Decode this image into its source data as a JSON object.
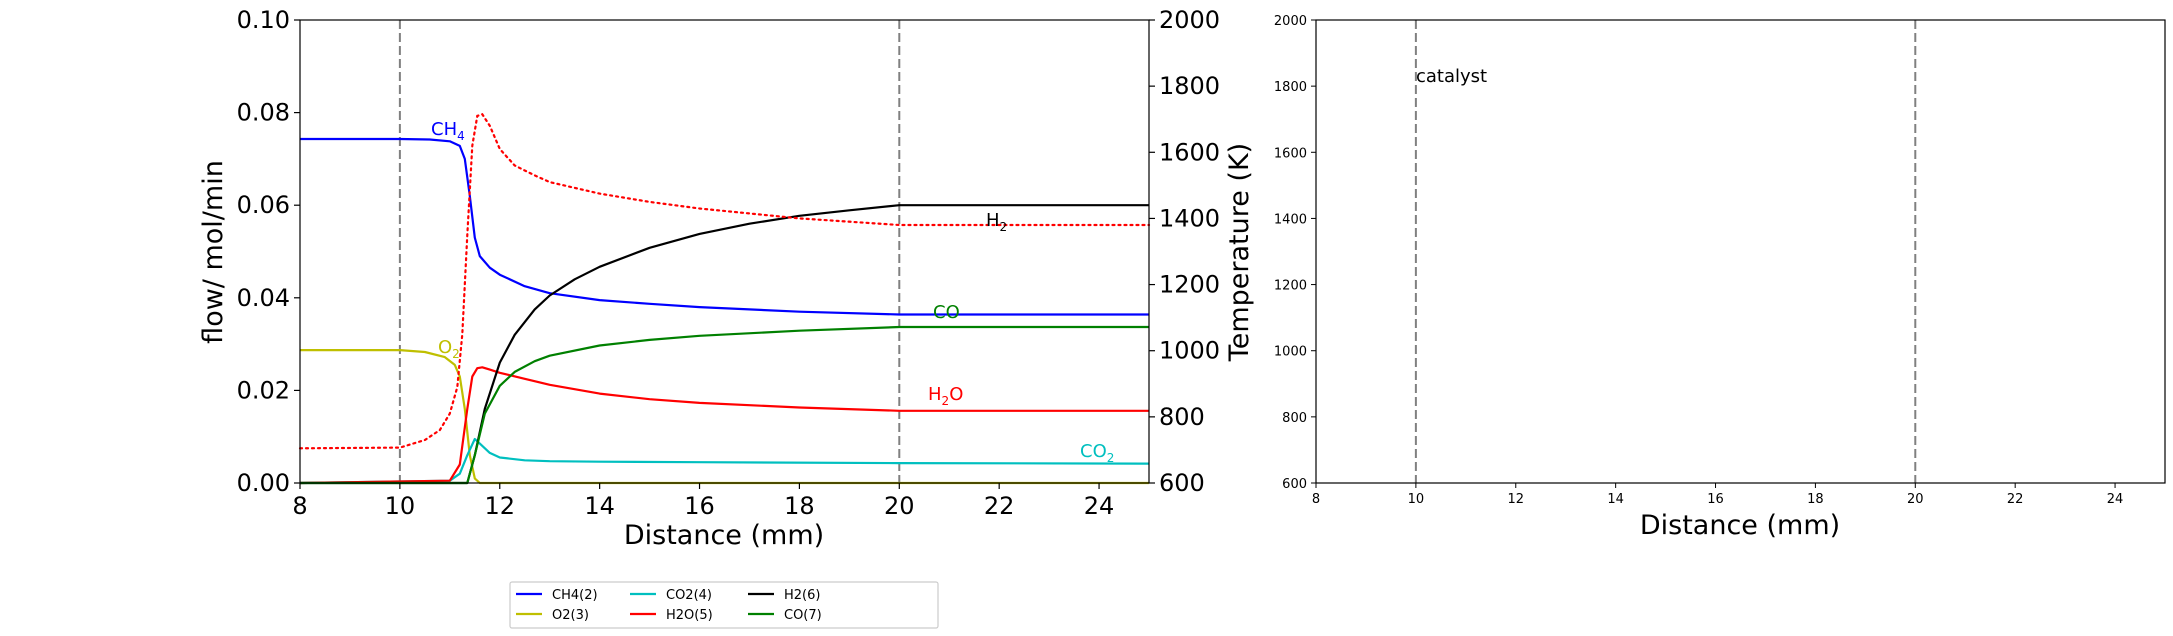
{
  "chart_data": [
    {
      "type": "line",
      "xlabel": "Distance (mm)",
      "ylabel": "flow/ mol/min",
      "y2label": "Temperature (K)",
      "xlim": [
        8,
        25
      ],
      "ylim": [
        0,
        0.1
      ],
      "y2lim": [
        600,
        2000
      ],
      "xticks": [
        "8",
        "10",
        "12",
        "14",
        "16",
        "18",
        "20",
        "22",
        "24"
      ],
      "yticks": [
        "0.00",
        "0.02",
        "0.04",
        "0.06",
        "0.08",
        "0.10"
      ],
      "y2ticks": [
        "600",
        "800",
        "1000",
        "1200",
        "1400",
        "1600",
        "1800",
        "2000"
      ],
      "vlines": [
        10,
        20
      ],
      "series": [
        {
          "name": "CH4(2)",
          "label": "CH",
          "sub": "4",
          "label_suffix": "",
          "color": "#0000ff",
          "x": [
            8,
            10,
            10.6,
            11.0,
            11.2,
            11.3,
            11.4,
            11.5,
            11.6,
            11.8,
            12,
            12.5,
            13,
            14,
            15,
            16,
            18,
            20,
            25
          ],
          "y": [
            0.0743,
            0.0743,
            0.0742,
            0.0738,
            0.0728,
            0.07,
            0.062,
            0.053,
            0.049,
            0.0465,
            0.045,
            0.0425,
            0.041,
            0.0395,
            0.0387,
            0.038,
            0.037,
            0.0364,
            0.0364
          ]
        },
        {
          "name": "O2(3)",
          "label": "O",
          "sub": "2",
          "label_suffix": "",
          "color": "#bfbf00",
          "x": [
            8,
            10,
            10.5,
            10.9,
            11.1,
            11.2,
            11.3,
            11.4,
            11.5,
            11.6,
            25
          ],
          "y": [
            0.0287,
            0.0287,
            0.0283,
            0.0272,
            0.0255,
            0.023,
            0.016,
            0.006,
            0.001,
            0.0,
            0.0
          ]
        },
        {
          "name": "CO2(4)",
          "label": "CO",
          "sub": "2",
          "label_suffix": "",
          "color": "#00bfbf",
          "x": [
            8,
            11.0,
            11.2,
            11.35,
            11.5,
            11.6,
            11.8,
            12,
            12.5,
            13,
            14,
            16,
            20,
            25
          ],
          "y": [
            0.0,
            0.0005,
            0.002,
            0.006,
            0.0095,
            0.0085,
            0.0065,
            0.0055,
            0.0049,
            0.0047,
            0.0046,
            0.0045,
            0.0043,
            0.0042
          ]
        },
        {
          "name": "H2O(5)",
          "label": "H",
          "sub": "2",
          "label_suffix": "O",
          "color": "#ff0000",
          "x": [
            8,
            11.0,
            11.2,
            11.35,
            11.45,
            11.55,
            11.65,
            11.8,
            12,
            12.5,
            13,
            14,
            15,
            16,
            18,
            20,
            25
          ],
          "y": [
            0.0,
            0.0005,
            0.004,
            0.016,
            0.023,
            0.0248,
            0.025,
            0.0245,
            0.0238,
            0.0225,
            0.0212,
            0.0193,
            0.0181,
            0.0173,
            0.0163,
            0.0156,
            0.0156
          ]
        },
        {
          "name": "H2(6)",
          "label": "H",
          "sub": "2",
          "label_suffix": "",
          "color": "#000000",
          "x": [
            8,
            11.35,
            11.5,
            11.7,
            12,
            12.3,
            12.7,
            13,
            13.5,
            14,
            15,
            16,
            17,
            18,
            19,
            20,
            25
          ],
          "y": [
            0.0,
            0.0,
            0.006,
            0.016,
            0.026,
            0.032,
            0.0375,
            0.0405,
            0.044,
            0.0467,
            0.0508,
            0.0538,
            0.056,
            0.0577,
            0.0589,
            0.06,
            0.06
          ]
        },
        {
          "name": "CO(7)",
          "label": "CO",
          "sub": "",
          "label_suffix": "",
          "color": "#008000",
          "x": [
            8,
            11.35,
            11.5,
            11.7,
            12,
            12.3,
            12.7,
            13,
            14,
            15,
            16,
            18,
            20,
            25
          ],
          "y": [
            0.0,
            0.0,
            0.006,
            0.015,
            0.021,
            0.024,
            0.0263,
            0.0275,
            0.0297,
            0.0309,
            0.0318,
            0.0329,
            0.0337,
            0.0337
          ]
        }
      ],
      "temperature": {
        "color": "#ff0000",
        "style": "dotted",
        "x": [
          8,
          10,
          10.5,
          10.8,
          11.0,
          11.15,
          11.25,
          11.35,
          11.45,
          11.55,
          11.65,
          11.8,
          12,
          12.3,
          12.7,
          13,
          14,
          15,
          16,
          18,
          20,
          25
        ],
        "y": [
          705,
          707,
          730,
          760,
          810,
          890,
          1050,
          1350,
          1620,
          1710,
          1715,
          1680,
          1610,
          1560,
          1530,
          1510,
          1475,
          1450,
          1430,
          1400,
          1380,
          1380
        ]
      },
      "legend": {
        "placement": "below",
        "entries": [
          "CH4(2)",
          "O2(3)",
          "CO2(4)",
          "H2O(5)",
          "H2(6)",
          "CO(7)"
        ]
      }
    },
    {
      "type": "line",
      "xlabel": "Distance (mm)",
      "xlim": [
        8,
        25
      ],
      "ylim": [
        600,
        2000
      ],
      "xticks": [
        "8",
        "10",
        "12",
        "14",
        "16",
        "18",
        "20",
        "22",
        "24"
      ],
      "yticks": [
        "600",
        "800",
        "1000",
        "1200",
        "1400",
        "1600",
        "1800",
        "2000"
      ],
      "vlines": [
        10,
        20
      ],
      "annotation": "catalyst",
      "series": []
    }
  ]
}
